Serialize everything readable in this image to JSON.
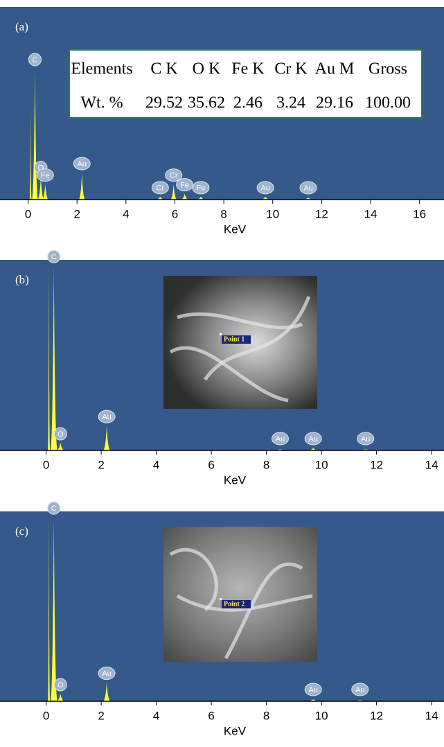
{
  "chart_data": [
    {
      "type": "spectrum",
      "panel_label": "(a)",
      "x_label": "KeV",
      "xlim": [
        -0.95,
        17
      ],
      "xticks": [
        0,
        2,
        4,
        6,
        8,
        10,
        12,
        14,
        16
      ],
      "ylim": [
        0,
        100
      ],
      "color": "#ffff33",
      "peaks": [
        {
          "x": 0.1,
          "value": 48
        },
        {
          "label": "C",
          "x": 0.28,
          "value": 68
        },
        {
          "label": "O",
          "x": 0.52,
          "value": 12
        },
        {
          "label": "Fe",
          "x": 0.7,
          "value": 8
        },
        {
          "label": "Au",
          "x": 2.2,
          "value": 14
        },
        {
          "label": "Cr",
          "x": 5.4,
          "value": 1.5
        },
        {
          "label": "Cr",
          "x": 5.95,
          "value": 8
        },
        {
          "label": "Fe",
          "x": 6.4,
          "value": 3
        },
        {
          "label": "Fe",
          "x": 7.06,
          "value": 1.5
        },
        {
          "label": "Au",
          "x": 9.7,
          "value": 1.5
        },
        {
          "label": "Au",
          "x": 11.45,
          "value": 1
        }
      ],
      "table": {
        "header": [
          "Elements",
          "C K",
          "O K",
          "Fe K",
          "Cr K",
          "Au M",
          "Gross"
        ],
        "row": [
          "Wt. %",
          "29.52",
          "35.62",
          "2.46",
          "3.24",
          "29.16",
          "100.00"
        ]
      }
    },
    {
      "type": "spectrum",
      "panel_label": "(b)",
      "x_label": "KeV",
      "xlim": [
        -1.5,
        14.45
      ],
      "xticks": [
        0,
        2,
        4,
        6,
        8,
        10,
        12,
        14
      ],
      "ylim": [
        0,
        100
      ],
      "color": "#ffff33",
      "peaks": [
        {
          "x": 0.1,
          "value": 100
        },
        {
          "label": "C",
          "x": 0.28,
          "value": 97
        },
        {
          "label": "O",
          "x": 0.52,
          "value": 4
        },
        {
          "label": "Au",
          "x": 2.2,
          "value": 13
        },
        {
          "label": "Au",
          "x": 8.5,
          "value": 0.5
        },
        {
          "label": "Au",
          "x": 9.7,
          "value": 1.2
        },
        {
          "label": "Au",
          "x": 11.6,
          "value": 0.5
        }
      ],
      "inset_label": "Point 1"
    },
    {
      "type": "spectrum",
      "panel_label": "(c)",
      "x_label": "KeV",
      "xlim": [
        -1.5,
        14.45
      ],
      "xticks": [
        0,
        2,
        4,
        6,
        8,
        10,
        12,
        14
      ],
      "ylim": [
        0,
        100
      ],
      "color": "#ffff33",
      "peaks": [
        {
          "x": 0.1,
          "value": 100
        },
        {
          "label": "C",
          "x": 0.28,
          "value": 97
        },
        {
          "label": "O",
          "x": 0.52,
          "value": 4
        },
        {
          "label": "Au",
          "x": 2.2,
          "value": 10
        },
        {
          "label": "Au",
          "x": 9.7,
          "value": 1
        },
        {
          "label": "Au",
          "x": 11.4,
          "value": 0.5
        }
      ],
      "inset_label": "Point 2"
    }
  ]
}
